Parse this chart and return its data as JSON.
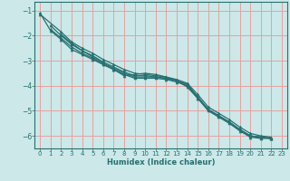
{
  "xlabel": "Humidex (Indice chaleur)",
  "ylabel": "",
  "bg_color": "#cce8e8",
  "grid_color": "#e8a0a0",
  "line_color": "#267070",
  "xlim": [
    -0.5,
    23.5
  ],
  "ylim": [
    -6.5,
    -0.65
  ],
  "yticks": [
    -6,
    -5,
    -4,
    -3,
    -2,
    -1
  ],
  "xticks": [
    0,
    1,
    2,
    3,
    4,
    5,
    6,
    7,
    8,
    9,
    10,
    11,
    12,
    13,
    14,
    15,
    16,
    17,
    18,
    19,
    20,
    21,
    22,
    23
  ],
  "series": [
    [
      0,
      -1.1,
      1,
      -1.8,
      2,
      -2.15,
      3,
      -2.55,
      4,
      -2.75,
      5,
      -2.95,
      6,
      -3.15,
      7,
      -3.35,
      8,
      -3.6,
      9,
      -3.55,
      10,
      -3.5,
      11,
      -3.55,
      12,
      -3.65,
      13,
      -3.8,
      14,
      -4.05,
      15,
      -4.5,
      16,
      -4.95,
      17,
      -5.2,
      18,
      -5.45,
      19,
      -5.75,
      20,
      -6.0,
      21,
      -6.05,
      22,
      -6.1
    ],
    [
      1,
      -1.6,
      2,
      -2.0,
      3,
      -2.35,
      4,
      -2.6,
      5,
      -2.8,
      6,
      -3.05,
      7,
      -3.25,
      8,
      -3.45,
      9,
      -3.6,
      10,
      -3.6,
      11,
      -3.65,
      12,
      -3.7,
      13,
      -3.8,
      14,
      -3.95,
      15,
      -4.45,
      16,
      -4.95,
      17,
      -5.2,
      18,
      -5.45,
      19,
      -5.75,
      20,
      -6.0,
      21,
      -6.05,
      22,
      -6.1
    ],
    [
      0,
      -1.15,
      2,
      -1.85,
      3,
      -2.25,
      4,
      -2.5,
      5,
      -2.7,
      6,
      -2.95,
      7,
      -3.15,
      8,
      -3.35,
      9,
      -3.5,
      10,
      -3.55,
      11,
      -3.6,
      12,
      -3.65,
      13,
      -3.75,
      14,
      -3.9,
      15,
      -4.35,
      16,
      -4.85,
      17,
      -5.1,
      18,
      -5.35,
      19,
      -5.65,
      20,
      -5.9,
      21,
      -6.0,
      22,
      -6.05
    ],
    [
      1,
      -1.75,
      2,
      -2.1,
      3,
      -2.45,
      4,
      -2.7,
      5,
      -2.9,
      6,
      -3.15,
      7,
      -3.35,
      8,
      -3.55,
      9,
      -3.7,
      10,
      -3.7,
      11,
      -3.7,
      12,
      -3.75,
      13,
      -3.85,
      14,
      -4.0,
      15,
      -4.5,
      16,
      -5.0,
      17,
      -5.25,
      18,
      -5.5,
      19,
      -5.8,
      20,
      -6.05,
      21,
      -6.1,
      22,
      -6.1
    ],
    [
      2,
      -1.95,
      3,
      -2.3,
      4,
      -2.6,
      5,
      -2.85,
      6,
      -3.1,
      7,
      -3.3,
      8,
      -3.5,
      9,
      -3.65,
      10,
      -3.65,
      11,
      -3.65,
      12,
      -3.7,
      13,
      -3.8,
      14,
      -3.95,
      15,
      -4.45,
      16,
      -4.95,
      17,
      -5.2,
      18,
      -5.45,
      19,
      -5.75,
      20,
      -6.0,
      21,
      -6.05,
      22,
      -6.1
    ]
  ]
}
